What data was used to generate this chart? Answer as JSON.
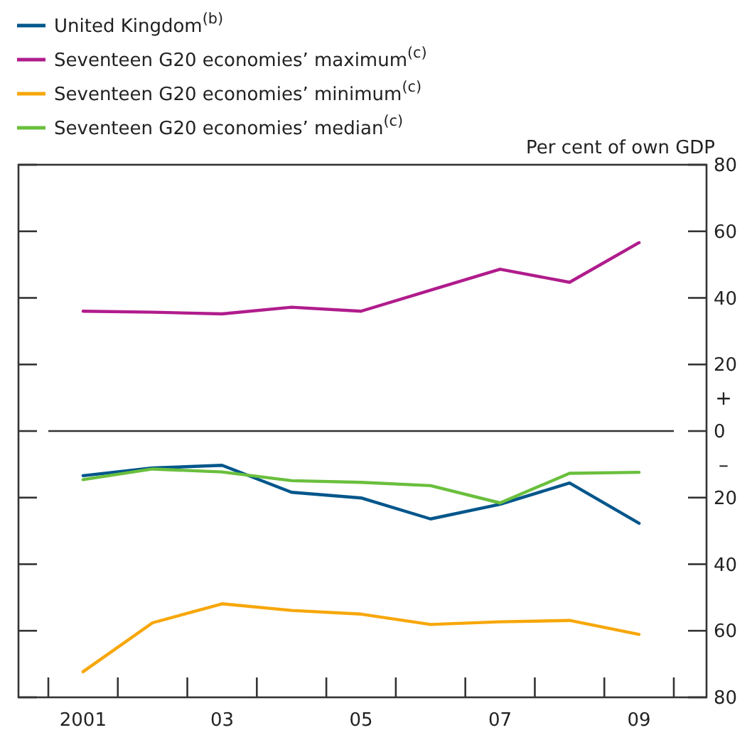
{
  "chart_data": {
    "type": "line",
    "ylabel": "Per cent of own GDP",
    "categories": [
      "2001",
      null,
      "03",
      null,
      "05",
      null,
      "07",
      null,
      "09"
    ],
    "ylim": [
      -80,
      80
    ],
    "yticks": [
      80,
      60,
      40,
      20,
      0,
      {
        "value": -20,
        "label": "20"
      },
      {
        "value": -40,
        "label": "40"
      },
      {
        "value": -60,
        "label": "60"
      },
      {
        "value": -80,
        "label": "80"
      }
    ],
    "series": [
      {
        "name": "United Kingdom$^{(b)}$",
        "color": "#00568b",
        "values": [
          -13.4,
          -11.1,
          -10.3,
          -18.4,
          -20.1,
          -26.4,
          -22,
          -15.6,
          -27.7
        ]
      },
      {
        "name": "Seventeen G20 economies’ maximum$^{(c)}$",
        "color": "#b01c8c",
        "values": [
          36,
          35.7,
          35.2,
          37.2,
          36,
          42.3,
          48.6,
          44.7,
          56.6
        ]
      },
      {
        "name": "Seventeen G20 economies’ minimum$^{(c)}$",
        "color": "#f7a70a",
        "values": [
          -72.3,
          -57.6,
          -51.9,
          -53.9,
          -55,
          -58.1,
          -57.3,
          -56.9,
          -61.1
        ]
      },
      {
        "name": "Seventeen G20 economies’ median$^{(c)}$",
        "color": "#6abf3d",
        "values": [
          -14.6,
          -11.4,
          -12.3,
          -14.9,
          -15.4,
          -16.4,
          -21.6,
          -12.7,
          -12.4
        ]
      }
    ],
    "ref_lines": [
      {
        "axis": "y",
        "value": 0,
        "color": "#333333"
      }
    ],
    "annotations": [
      "+",
      "–"
    ],
    "legend": "top left",
    "grid": false,
    "tick_labels": "xy2",
    "marker": "none",
    "line_style": "solid"
  }
}
